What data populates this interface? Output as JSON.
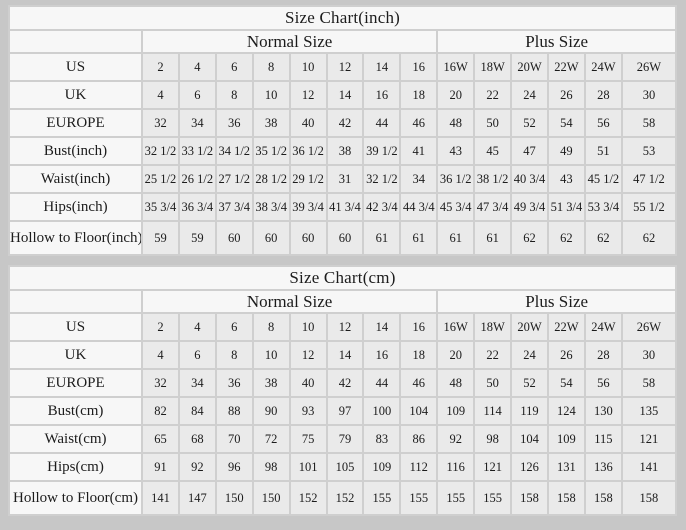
{
  "page": {
    "background_color": "#c7c7c7",
    "cell_bg_light": "#f7f7f7",
    "cell_bg_data": "#eaeaea",
    "grid_color": "#cfcfcf",
    "text_color": "#1c1c1c"
  },
  "tables": [
    {
      "title": "Size Chart(inch)",
      "group_headers": [
        {
          "label": "Normal Size",
          "span": 8
        },
        {
          "label": "Plus Size",
          "span": 6
        }
      ],
      "rows": [
        {
          "label": "US",
          "values": [
            "2",
            "4",
            "6",
            "8",
            "10",
            "12",
            "14",
            "16",
            "16W",
            "18W",
            "20W",
            "22W",
            "24W",
            "26W"
          ]
        },
        {
          "label": "UK",
          "values": [
            "4",
            "6",
            "8",
            "10",
            "12",
            "14",
            "16",
            "18",
            "20",
            "22",
            "24",
            "26",
            "28",
            "30"
          ]
        },
        {
          "label": "EUROPE",
          "values": [
            "32",
            "34",
            "36",
            "38",
            "40",
            "42",
            "44",
            "46",
            "48",
            "50",
            "52",
            "54",
            "56",
            "58"
          ]
        },
        {
          "label": "Bust(inch)",
          "values": [
            "32 1/2",
            "33 1/2",
            "34 1/2",
            "35 1/2",
            "36 1/2",
            "38",
            "39 1/2",
            "41",
            "43",
            "45",
            "47",
            "49",
            "51",
            "53"
          ]
        },
        {
          "label": "Waist(inch)",
          "values": [
            "25 1/2",
            "26 1/2",
            "27 1/2",
            "28 1/2",
            "29 1/2",
            "31",
            "32 1/2",
            "34",
            "36 1/2",
            "38 1/2",
            "40 3/4",
            "43",
            "45 1/2",
            "47 1/2"
          ]
        },
        {
          "label": "Hips(inch)",
          "values": [
            "35 3/4",
            "36 3/4",
            "37 3/4",
            "38 3/4",
            "39 3/4",
            "41 3/4",
            "42 3/4",
            "44 3/4",
            "45 3/4",
            "47 3/4",
            "49 3/4",
            "51 3/4",
            "53 3/4",
            "55 1/2"
          ]
        },
        {
          "label": "Hollow to Floor(inch)",
          "values": [
            "59",
            "59",
            "60",
            "60",
            "60",
            "60",
            "61",
            "61",
            "61",
            "61",
            "62",
            "62",
            "62",
            "62"
          ]
        }
      ]
    },
    {
      "title": "Size Chart(cm)",
      "group_headers": [
        {
          "label": "Normal Size",
          "span": 8
        },
        {
          "label": "Plus Size",
          "span": 6
        }
      ],
      "rows": [
        {
          "label": "US",
          "values": [
            "2",
            "4",
            "6",
            "8",
            "10",
            "12",
            "14",
            "16",
            "16W",
            "18W",
            "20W",
            "22W",
            "24W",
            "26W"
          ]
        },
        {
          "label": "UK",
          "values": [
            "4",
            "6",
            "8",
            "10",
            "12",
            "14",
            "16",
            "18",
            "20",
            "22",
            "24",
            "26",
            "28",
            "30"
          ]
        },
        {
          "label": "EUROPE",
          "values": [
            "32",
            "34",
            "36",
            "38",
            "40",
            "42",
            "44",
            "46",
            "48",
            "50",
            "52",
            "54",
            "56",
            "58"
          ]
        },
        {
          "label": "Bust(cm)",
          "values": [
            "82",
            "84",
            "88",
            "90",
            "93",
            "97",
            "100",
            "104",
            "109",
            "114",
            "119",
            "124",
            "130",
            "135"
          ]
        },
        {
          "label": "Waist(cm)",
          "values": [
            "65",
            "68",
            "70",
            "72",
            "75",
            "79",
            "83",
            "86",
            "92",
            "98",
            "104",
            "109",
            "115",
            "121"
          ]
        },
        {
          "label": "Hips(cm)",
          "values": [
            "91",
            "92",
            "96",
            "98",
            "101",
            "105",
            "109",
            "112",
            "116",
            "121",
            "126",
            "131",
            "136",
            "141"
          ]
        },
        {
          "label": "Hollow to Floor(cm)",
          "values": [
            "141",
            "147",
            "150",
            "150",
            "152",
            "152",
            "155",
            "155",
            "155",
            "155",
            "158",
            "158",
            "158",
            "158"
          ]
        }
      ]
    }
  ]
}
